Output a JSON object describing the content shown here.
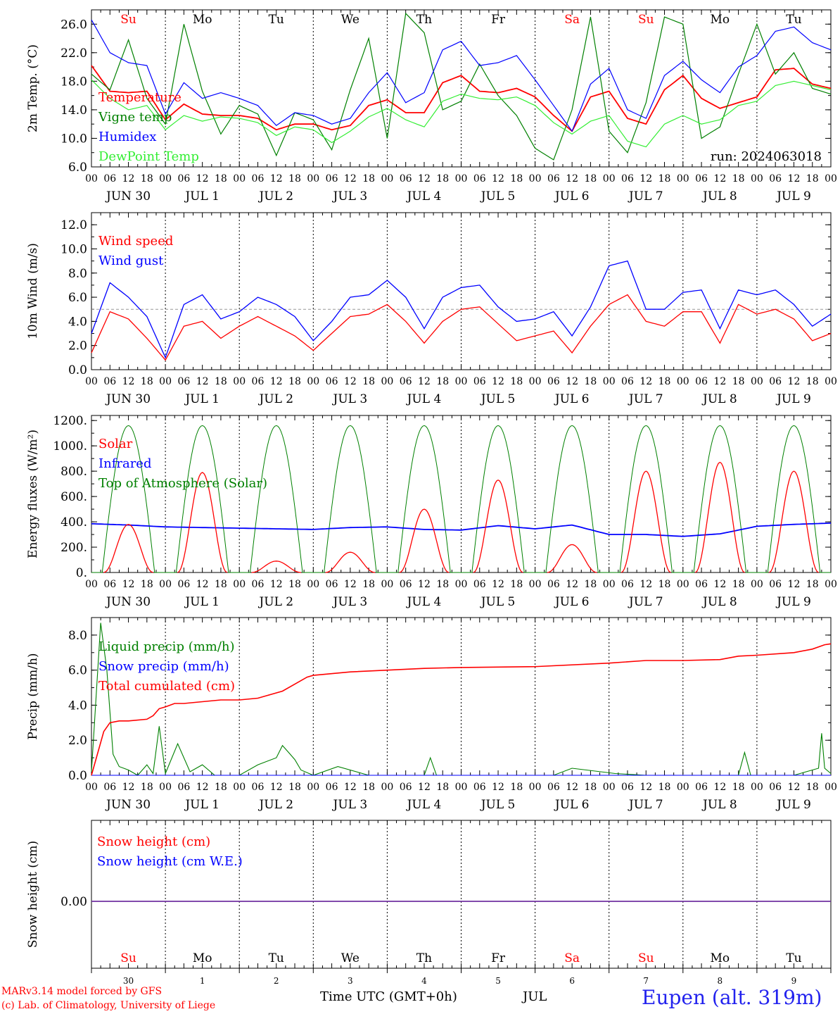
{
  "colors": {
    "red": "#ff0000",
    "green": "#008000",
    "blue": "#0000ff",
    "lightgreen": "#33ee33",
    "purple": "#7030a0",
    "black": "#000000",
    "gray": "#999999"
  },
  "xaxis": {
    "hour_labels": [
      "00",
      "06",
      "12",
      "18"
    ],
    "date_labels": [
      "JUN 30",
      "JUL  1",
      "JUL  2",
      "JUL  3",
      "JUL  4",
      "JUL  5",
      "JUL  6",
      "JUL  7",
      "JUL  8",
      "JUL  9"
    ],
    "weekdays": [
      "Su",
      "Mo",
      "Tu",
      "We",
      "Th",
      "Fr",
      "Sa",
      "Su",
      "Mo",
      "Tu"
    ],
    "weekday_colors": [
      "red",
      "black",
      "black",
      "black",
      "black",
      "black",
      "red",
      "red",
      "black",
      "black"
    ],
    "day_numbers": [
      "30",
      "1",
      "2",
      "3",
      "4",
      "5",
      "6",
      "7",
      "8",
      "9"
    ],
    "month": "JUL",
    "title": "Time UTC (GMT+0h)"
  },
  "footer": {
    "model": "MARv3.14 model forced by GFS",
    "credit": "(c) Lab. of Climatology, University of Liege",
    "station": "Eupen (alt. 319m)"
  },
  "chart_data": [
    {
      "type": "line",
      "panel": "temperature",
      "ylabel": "2m Temp. (°C)",
      "ylim": [
        6,
        28
      ],
      "yticks": [
        6,
        10,
        14,
        18,
        22,
        26
      ],
      "ytick_labels": [
        "6.0",
        "10.0",
        "14.0",
        "18.0",
        "22.0",
        "26.0"
      ],
      "annotation": "run: 2024063018",
      "x_hours": [
        0,
        6,
        12,
        18,
        24,
        30,
        36,
        42,
        48,
        54,
        60,
        66,
        72,
        78,
        84,
        90,
        96,
        102,
        108,
        114,
        120,
        126,
        132,
        138,
        144,
        150,
        156,
        162,
        168,
        174,
        180,
        186,
        192,
        198,
        204,
        210,
        216,
        222,
        228,
        234,
        240
      ],
      "series": [
        {
          "name": "Temperature",
          "color": "red",
          "values": [
            20.2,
            16.6,
            16.4,
            16.6,
            12.6,
            14.8,
            13.4,
            13.2,
            13.2,
            12.8,
            11.2,
            12.0,
            12.0,
            11.2,
            11.8,
            14.6,
            15.4,
            13.6,
            13.6,
            17.8,
            18.8,
            16.6,
            16.4,
            17.0,
            15.8,
            13.2,
            11.0,
            15.8,
            16.6,
            12.8,
            12.0,
            16.8,
            18.8,
            15.6,
            14.2,
            15.0,
            15.8,
            19.6,
            19.8,
            17.6,
            17.0
          ]
        },
        {
          "name": "Vigne temp",
          "color": "green",
          "values": [
            19.0,
            16.8,
            23.8,
            15.6,
            12.0,
            26.0,
            16.6,
            10.6,
            14.6,
            13.4,
            7.6,
            13.6,
            12.6,
            8.4,
            16.8,
            24.0,
            10.0,
            27.5,
            24.8,
            14.0,
            15.2,
            20.4,
            16.0,
            13.2,
            8.6,
            7.0,
            14.0,
            27.0,
            11.0,
            8.0,
            15.0,
            27.0,
            26.0,
            10.0,
            11.6,
            19.0,
            26.0,
            19.0,
            22.0,
            17.0,
            16.2
          ]
        },
        {
          "name": "Humidex",
          "color": "blue",
          "values": [
            26.6,
            22.0,
            20.6,
            20.2,
            13.4,
            17.8,
            15.6,
            16.4,
            15.6,
            14.6,
            11.8,
            13.6,
            13.2,
            12.0,
            12.8,
            16.4,
            19.2,
            15.0,
            16.4,
            22.4,
            23.6,
            20.2,
            20.6,
            21.6,
            18.2,
            14.6,
            11.0,
            17.6,
            19.8,
            14.0,
            12.8,
            18.8,
            20.8,
            18.2,
            16.4,
            20.0,
            21.6,
            25.0,
            25.6,
            23.4,
            22.4
          ]
        },
        {
          "name": "DewPoint Temp",
          "color": "lightgreen",
          "values": [
            18.2,
            15.6,
            14.0,
            14.6,
            11.2,
            13.2,
            12.4,
            13.0,
            12.8,
            12.2,
            10.4,
            11.6,
            11.2,
            9.4,
            11.0,
            13.0,
            14.2,
            12.6,
            11.6,
            15.2,
            16.2,
            15.6,
            15.4,
            15.8,
            14.6,
            12.2,
            10.6,
            12.4,
            13.2,
            9.6,
            8.8,
            12.0,
            13.2,
            12.0,
            12.6,
            14.6,
            15.2,
            17.4,
            18.0,
            17.4,
            16.8
          ]
        }
      ]
    },
    {
      "type": "line",
      "panel": "wind",
      "ylabel": "10m Wind (m/s)",
      "ylim": [
        0,
        13
      ],
      "yticks": [
        0,
        2,
        4,
        6,
        8,
        10,
        12
      ],
      "ytick_labels": [
        "0.0",
        "2.0",
        "4.0",
        "6.0",
        "8.0",
        "10.0",
        "12.0"
      ],
      "reference_line": 5.0,
      "x_hours": [
        0,
        6,
        12,
        18,
        24,
        30,
        36,
        42,
        48,
        54,
        60,
        66,
        72,
        78,
        84,
        90,
        96,
        102,
        108,
        114,
        120,
        126,
        132,
        138,
        144,
        150,
        156,
        162,
        168,
        174,
        180,
        186,
        192,
        198,
        204,
        210,
        216,
        222,
        228,
        234,
        240
      ],
      "series": [
        {
          "name": "Wind speed",
          "color": "red",
          "values": [
            1.4,
            4.8,
            4.2,
            2.6,
            0.8,
            3.6,
            4.0,
            2.6,
            3.6,
            4.4,
            3.6,
            2.8,
            1.6,
            3.0,
            4.4,
            4.6,
            5.4,
            4.0,
            2.2,
            4.0,
            5.0,
            5.2,
            3.8,
            2.4,
            2.8,
            3.2,
            1.4,
            3.6,
            5.4,
            6.2,
            4.0,
            3.6,
            4.8,
            4.8,
            2.2,
            5.4,
            4.6,
            5.0,
            4.2,
            2.4,
            3.0
          ]
        },
        {
          "name": "Wind gust",
          "color": "blue",
          "values": [
            3.0,
            7.2,
            6.0,
            4.4,
            1.0,
            5.4,
            6.2,
            4.2,
            4.8,
            6.0,
            5.4,
            4.4,
            2.4,
            4.0,
            6.0,
            6.2,
            7.4,
            6.0,
            3.4,
            6.0,
            6.8,
            7.0,
            5.2,
            4.0,
            4.2,
            4.8,
            2.8,
            5.2,
            8.6,
            9.0,
            5.0,
            5.0,
            6.4,
            6.6,
            3.4,
            6.6,
            6.2,
            6.6,
            5.4,
            3.6,
            4.6
          ]
        }
      ]
    },
    {
      "type": "line",
      "panel": "energy",
      "ylabel": "Energy fluxes (W/m²)",
      "ylim": [
        0,
        1240
      ],
      "yticks": [
        0,
        200,
        400,
        600,
        800,
        1000,
        1200
      ],
      "ytick_labels": [
        "0.",
        "200.",
        "400.",
        "600.",
        "800.",
        "1000.",
        "1200."
      ],
      "series": [
        {
          "name": "Solar",
          "color": "red",
          "peaks": [
            380,
            790,
            90,
            160,
            500,
            730,
            220,
            800,
            870,
            800
          ]
        },
        {
          "name": "Infrared",
          "color": "blue",
          "x_hours": [
            0,
            12,
            24,
            36,
            48,
            60,
            72,
            84,
            96,
            108,
            120,
            132,
            144,
            156,
            168,
            180,
            192,
            204,
            216,
            228,
            240
          ],
          "values": [
            385,
            375,
            360,
            355,
            350,
            345,
            340,
            355,
            360,
            340,
            335,
            370,
            345,
            375,
            300,
            300,
            285,
            305,
            365,
            380,
            390
          ]
        },
        {
          "name": "Top of Atmosphere (Solar)",
          "color": "green",
          "peak": 1160,
          "sunrise_hour": 3.5,
          "sunset_hour": 20.5
        }
      ]
    },
    {
      "type": "line",
      "panel": "precip",
      "ylabel": "Precip (mm/h)",
      "ylim": [
        0,
        9
      ],
      "yticks": [
        0,
        2,
        4,
        6,
        8
      ],
      "ytick_labels": [
        "0.0",
        "2.0",
        "4.0",
        "6.0",
        "8.0"
      ],
      "series": [
        {
          "name": "Liquid precip (mm/h)",
          "color": "green",
          "x_hours": [
            0,
            3,
            5,
            7,
            9,
            12,
            15,
            18,
            20,
            22,
            24,
            28,
            32,
            36,
            40,
            44,
            48,
            54,
            60,
            62,
            64,
            66,
            68,
            72,
            80,
            90,
            96,
            108,
            110,
            112,
            120,
            150,
            156,
            170,
            180,
            190,
            210,
            212,
            214,
            228,
            236,
            237,
            238,
            240
          ],
          "values": [
            0.2,
            8.7,
            6.0,
            1.2,
            0.5,
            0.3,
            0.0,
            0.6,
            0.1,
            2.8,
            0.1,
            1.8,
            0.2,
            0.6,
            0.0,
            0.0,
            0.0,
            0.6,
            1.0,
            1.7,
            1.3,
            0.9,
            0.3,
            0.0,
            0.5,
            0.0,
            0.0,
            0.0,
            1.0,
            0.0,
            0.0,
            0.0,
            0.4,
            0.1,
            0.0,
            0.0,
            0.0,
            1.3,
            0.0,
            0.0,
            0.4,
            2.4,
            0.4,
            0.1
          ]
        },
        {
          "name": "Snow precip (mm/h)",
          "color": "blue",
          "x_hours": [
            0,
            240
          ],
          "values": [
            0,
            0
          ]
        },
        {
          "name": "Total cumulated (cm)",
          "color": "red",
          "x_hours": [
            0,
            4,
            6,
            9,
            12,
            18,
            20,
            22,
            24,
            27,
            30,
            36,
            42,
            48,
            54,
            58,
            62,
            66,
            70,
            72,
            84,
            96,
            108,
            120,
            144,
            168,
            180,
            192,
            204,
            210,
            216,
            228,
            234,
            238,
            240
          ],
          "values": [
            0,
            2.5,
            3.0,
            3.1,
            3.1,
            3.2,
            3.4,
            3.8,
            3.9,
            4.1,
            4.1,
            4.2,
            4.3,
            4.3,
            4.4,
            4.6,
            4.8,
            5.2,
            5.6,
            5.7,
            5.9,
            6.0,
            6.1,
            6.15,
            6.2,
            6.4,
            6.55,
            6.55,
            6.6,
            6.8,
            6.85,
            7.0,
            7.2,
            7.45,
            7.5
          ]
        }
      ]
    },
    {
      "type": "line",
      "panel": "snow",
      "ylabel": "Snow height (cm)",
      "yticks": [
        0
      ],
      "ytick_labels": [
        "0.00"
      ],
      "series": [
        {
          "name": "Snow height (cm)",
          "color": "red",
          "x_hours": [
            0,
            240
          ],
          "values": [
            0,
            0
          ]
        },
        {
          "name": "Snow height (cm W.E.)",
          "color": "blue",
          "x_hours": [
            0,
            240
          ],
          "values": [
            0,
            0
          ]
        }
      ]
    }
  ]
}
